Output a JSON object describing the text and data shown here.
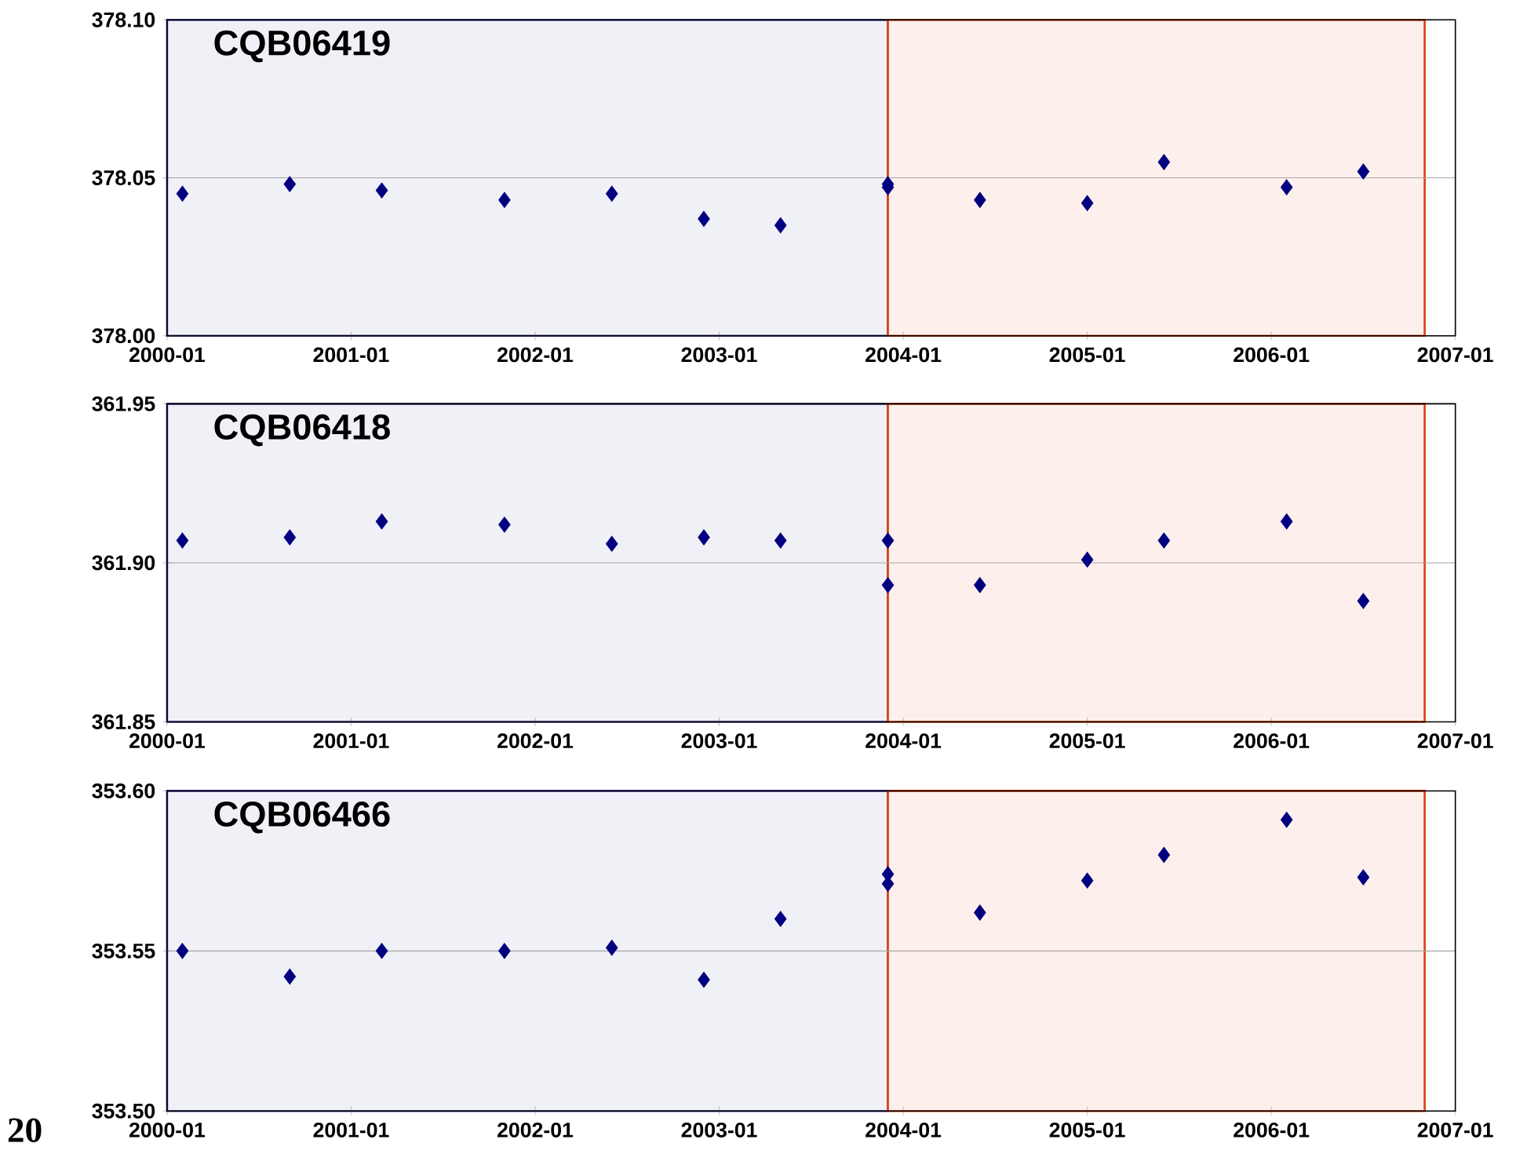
{
  "chart_data": [
    {
      "type": "scatter",
      "title": "CQB06419",
      "marker": "diamond",
      "grid": "y",
      "xlim": [
        "2000-01",
        "2007-01"
      ],
      "ylim": [
        378.0,
        378.1
      ],
      "xticks": [
        "2000-01",
        "2001-01",
        "2002-01",
        "2003-01",
        "2004-01",
        "2005-01",
        "2006-01",
        "2007-01"
      ],
      "yticks": [
        {
          "value": 378.0,
          "label": "378.00"
        },
        {
          "value": 378.05,
          "label": "378.05"
        },
        {
          "value": 378.1,
          "label": "378.10"
        }
      ],
      "bands": [
        {
          "axis": "x",
          "from": "2000-01",
          "to": "2003-12",
          "color": "#4040a0"
        },
        {
          "axis": "x",
          "from": "2003-12",
          "to": "2006-11",
          "color": "#e04010"
        }
      ],
      "series": [
        {
          "color": "#000080",
          "x": [
            "2000-02",
            "2000-09",
            "2001-03",
            "2001-11",
            "2002-06",
            "2002-12",
            "2003-05",
            "2003-12",
            "2003-12",
            "2004-06",
            "2005-01",
            "2005-06",
            "2006-02",
            "2006-07"
          ],
          "values": [
            378.045,
            378.048,
            378.046,
            378.043,
            378.045,
            378.037,
            378.035,
            378.048,
            378.047,
            378.043,
            378.042,
            378.055,
            378.047,
            378.052
          ]
        }
      ]
    },
    {
      "type": "scatter",
      "title": "CQB06418",
      "marker": "diamond",
      "grid": "y",
      "xlim": [
        "2000-01",
        "2007-01"
      ],
      "ylim": [
        361.85,
        361.95
      ],
      "xticks": [
        "2000-01",
        "2001-01",
        "2002-01",
        "2003-01",
        "2004-01",
        "2005-01",
        "2006-01",
        "2007-01"
      ],
      "yticks": [
        {
          "value": 361.85,
          "label": "361.85"
        },
        {
          "value": 361.9,
          "label": "361.90"
        },
        {
          "value": 361.95,
          "label": "361.95"
        }
      ],
      "bands": [
        {
          "axis": "x",
          "from": "2000-01",
          "to": "2003-12",
          "color": "#4040a0"
        },
        {
          "axis": "x",
          "from": "2003-12",
          "to": "2006-11",
          "color": "#e04010"
        }
      ],
      "series": [
        {
          "color": "#000080",
          "x": [
            "2000-02",
            "2000-09",
            "2001-03",
            "2001-11",
            "2002-06",
            "2002-12",
            "2003-05",
            "2003-12",
            "2003-12",
            "2004-06",
            "2005-01",
            "2005-06",
            "2006-02",
            "2006-07"
          ],
          "values": [
            361.907,
            361.908,
            361.913,
            361.912,
            361.906,
            361.908,
            361.907,
            361.907,
            361.893,
            361.893,
            361.901,
            361.907,
            361.913,
            361.888
          ]
        }
      ]
    },
    {
      "type": "scatter",
      "title": "CQB06466",
      "marker": "diamond",
      "grid": "y",
      "xlim": [
        "2000-01",
        "2007-01"
      ],
      "ylim": [
        353.5,
        353.6
      ],
      "xticks": [
        "2000-01",
        "2001-01",
        "2002-01",
        "2003-01",
        "2004-01",
        "2005-01",
        "2006-01",
        "2007-01"
      ],
      "yticks": [
        {
          "value": 353.5,
          "label": "353.50"
        },
        {
          "value": 353.55,
          "label": "353.55"
        },
        {
          "value": 353.6,
          "label": "353.60"
        }
      ],
      "bands": [
        {
          "axis": "x",
          "from": "2000-01",
          "to": "2003-12",
          "color": "#4040a0"
        },
        {
          "axis": "x",
          "from": "2003-12",
          "to": "2006-11",
          "color": "#e04010"
        }
      ],
      "annotations": [
        "20"
      ],
      "series": [
        {
          "color": "#000080",
          "x": [
            "2000-02",
            "2000-09",
            "2001-03",
            "2001-11",
            "2002-06",
            "2002-12",
            "2003-05",
            "2003-12",
            "2003-12",
            "2004-06",
            "2005-01",
            "2005-06",
            "2006-02",
            "2006-07"
          ],
          "values": [
            353.55,
            353.542,
            353.55,
            353.55,
            353.551,
            353.541,
            353.56,
            353.574,
            353.571,
            353.562,
            353.572,
            353.58,
            353.591,
            353.573
          ]
        }
      ]
    }
  ]
}
